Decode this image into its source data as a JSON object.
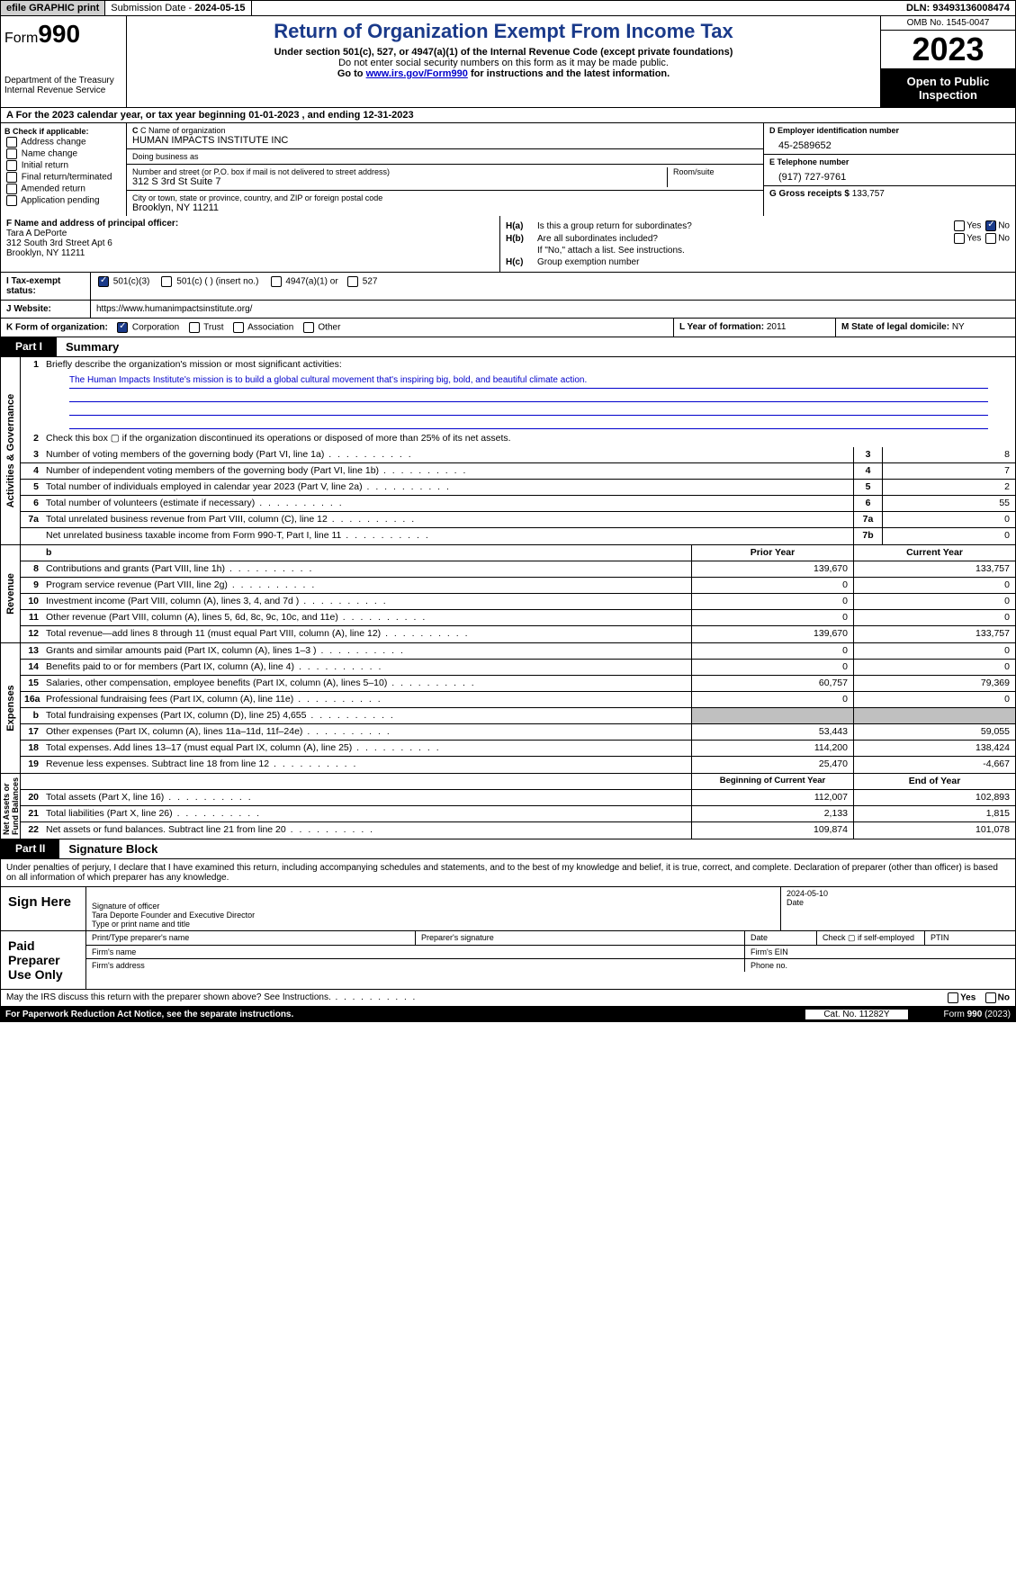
{
  "topbar": {
    "efile": "efile GRAPHIC print",
    "subdate_label": "Submission Date - ",
    "subdate": "2024-05-15",
    "dln_label": "DLN: ",
    "dln": "93493136008474"
  },
  "header": {
    "form_label": "Form",
    "form_no": "990",
    "dept": "Department of the Treasury\nInternal Revenue Service",
    "title": "Return of Organization Exempt From Income Tax",
    "sub": "Under section 501(c), 527, or 4947(a)(1) of the Internal Revenue Code (except private foundations)",
    "note1": "Do not enter social security numbers on this form as it may be made public.",
    "note2_pre": "Go to ",
    "note2_link": "www.irs.gov/Form990",
    "note2_post": " for instructions and the latest information.",
    "omb": "OMB No. 1545-0047",
    "year": "2023",
    "open": "Open to Public Inspection"
  },
  "line_a": "A For the 2023 calendar year, or tax year beginning 01-01-2023   , and ending 12-31-2023",
  "box_b": {
    "hdr": "B Check if applicable:",
    "items": [
      "Address change",
      "Name change",
      "Initial return",
      "Final return/terminated",
      "Amended return",
      "Application pending"
    ]
  },
  "box_c": {
    "name_lbl": "C Name of organization",
    "name": "HUMAN IMPACTS INSTITUTE INC",
    "dba_lbl": "Doing business as",
    "dba": "",
    "addr_lbl": "Number and street (or P.O. box if mail is not delivered to street address)",
    "addr": "312 S 3rd St Suite 7",
    "room_lbl": "Room/suite",
    "city_lbl": "City or town, state or province, country, and ZIP or foreign postal code",
    "city": "Brooklyn, NY  11211"
  },
  "box_d": {
    "lbl": "D Employer identification number",
    "val": "45-2589652"
  },
  "box_e": {
    "lbl": "E Telephone number",
    "val": "(917) 727-9761"
  },
  "box_g": {
    "lbl": "G Gross receipts $ ",
    "val": "133,757"
  },
  "box_f": {
    "lbl": "F  Name and address of principal officer:",
    "line1": "Tara A DePorte",
    "line2": "312 South 3rd Street Apt 6",
    "line3": "Brooklyn, NY  11211"
  },
  "box_h": {
    "a_lbl": "H(a)",
    "a_txt": "Is this a group return for subordinates?",
    "b_lbl": "H(b)",
    "b_txt": "Are all subordinates included?",
    "b_note": "If \"No,\" attach a list. See instructions.",
    "c_lbl": "H(c)",
    "c_txt": "Group exemption number",
    "yes": "Yes",
    "no": "No"
  },
  "row_i": {
    "lbl": "I    Tax-exempt status:",
    "opt1": "501(c)(3)",
    "opt2": "501(c) (  ) (insert no.)",
    "opt3": "4947(a)(1) or",
    "opt4": "527"
  },
  "row_j": {
    "lbl": "J    Website:",
    "val": "https://www.humanimpactsinstitute.org/"
  },
  "row_k": {
    "lbl": "K Form of organization:",
    "opts": [
      "Corporation",
      "Trust",
      "Association",
      "Other"
    ]
  },
  "row_l": {
    "lbl": "L Year of formation: ",
    "val": "2011"
  },
  "row_m": {
    "lbl": "M State of legal domicile: ",
    "val": "NY"
  },
  "part1": {
    "num": "Part I",
    "title": "Summary"
  },
  "mission": {
    "ln": "1",
    "lbl": "Briefly describe the organization's mission or most significant activities:",
    "text": "The Human Impacts Institute's mission is to build a global cultural movement that's inspiring big, bold, and beautiful climate action."
  },
  "gov_lines": [
    {
      "n": "2",
      "txt": "Check this box ▢ if the organization discontinued its operations or disposed of more than 25% of its net assets."
    },
    {
      "n": "3",
      "txt": "Number of voting members of the governing body (Part VI, line 1a)",
      "box": "3",
      "val": "8"
    },
    {
      "n": "4",
      "txt": "Number of independent voting members of the governing body (Part VI, line 1b)",
      "box": "4",
      "val": "7"
    },
    {
      "n": "5",
      "txt": "Total number of individuals employed in calendar year 2023 (Part V, line 2a)",
      "box": "5",
      "val": "2"
    },
    {
      "n": "6",
      "txt": "Total number of volunteers (estimate if necessary)",
      "box": "6",
      "val": "55"
    },
    {
      "n": "7a",
      "txt": "Total unrelated business revenue from Part VIII, column (C), line 12",
      "box": "7a",
      "val": "0"
    },
    {
      "n": "",
      "txt": "Net unrelated business taxable income from Form 990-T, Part I, line 11",
      "box": "7b",
      "val": "0"
    }
  ],
  "rev_hdr": {
    "prior": "Prior Year",
    "curr": "Current Year"
  },
  "rev_lines": [
    {
      "n": "8",
      "txt": "Contributions and grants (Part VIII, line 1h)",
      "p": "139,670",
      "c": "133,757"
    },
    {
      "n": "9",
      "txt": "Program service revenue (Part VIII, line 2g)",
      "p": "0",
      "c": "0"
    },
    {
      "n": "10",
      "txt": "Investment income (Part VIII, column (A), lines 3, 4, and 7d )",
      "p": "0",
      "c": "0"
    },
    {
      "n": "11",
      "txt": "Other revenue (Part VIII, column (A), lines 5, 6d, 8c, 9c, 10c, and 11e)",
      "p": "0",
      "c": "0"
    },
    {
      "n": "12",
      "txt": "Total revenue—add lines 8 through 11 (must equal Part VIII, column (A), line 12)",
      "p": "139,670",
      "c": "133,757"
    }
  ],
  "exp_lines": [
    {
      "n": "13",
      "txt": "Grants and similar amounts paid (Part IX, column (A), lines 1–3 )",
      "p": "0",
      "c": "0"
    },
    {
      "n": "14",
      "txt": "Benefits paid to or for members (Part IX, column (A), line 4)",
      "p": "0",
      "c": "0"
    },
    {
      "n": "15",
      "txt": "Salaries, other compensation, employee benefits (Part IX, column (A), lines 5–10)",
      "p": "60,757",
      "c": "79,369"
    },
    {
      "n": "16a",
      "txt": "Professional fundraising fees (Part IX, column (A), line 11e)",
      "p": "0",
      "c": "0"
    },
    {
      "n": "b",
      "txt": "Total fundraising expenses (Part IX, column (D), line 25) 4,655",
      "p": "",
      "c": "",
      "grey": true
    },
    {
      "n": "17",
      "txt": "Other expenses (Part IX, column (A), lines 11a–11d, 11f–24e)",
      "p": "53,443",
      "c": "59,055"
    },
    {
      "n": "18",
      "txt": "Total expenses. Add lines 13–17 (must equal Part IX, column (A), line 25)",
      "p": "114,200",
      "c": "138,424"
    },
    {
      "n": "19",
      "txt": "Revenue less expenses. Subtract line 18 from line 12",
      "p": "25,470",
      "c": "-4,667"
    }
  ],
  "na_hdr": {
    "prior": "Beginning of Current Year",
    "curr": "End of Year"
  },
  "na_lines": [
    {
      "n": "20",
      "txt": "Total assets (Part X, line 16)",
      "p": "112,007",
      "c": "102,893"
    },
    {
      "n": "21",
      "txt": "Total liabilities (Part X, line 26)",
      "p": "2,133",
      "c": "1,815"
    },
    {
      "n": "22",
      "txt": "Net assets or fund balances. Subtract line 21 from line 20",
      "p": "109,874",
      "c": "101,078"
    }
  ],
  "side_labels": {
    "gov": "Activities & Governance",
    "rev": "Revenue",
    "exp": "Expenses",
    "na": "Net Assets or\nFund Balances"
  },
  "part2": {
    "num": "Part II",
    "title": "Signature Block"
  },
  "decl": "Under penalties of perjury, I declare that I have examined this return, including accompanying schedules and statements, and to the best of my knowledge and belief, it is true, correct, and complete. Declaration of preparer (other than officer) is based on all information of which preparer has any knowledge.",
  "sign": {
    "here": "Sign Here",
    "sig_lbl": "Signature of officer",
    "date": "2024-05-10",
    "name": "Tara Deporte  Founder and Executive Director",
    "type_lbl": "Type or print name and title",
    "date_lbl": "Date"
  },
  "paid": {
    "lbl": "Paid Preparer Use Only",
    "c1": "Print/Type preparer's name",
    "c2": "Preparer's signature",
    "c3": "Date",
    "c4": "Check ▢ if self-employed",
    "c5": "PTIN",
    "firm_name": "Firm's name",
    "firm_ein": "Firm's EIN",
    "firm_addr": "Firm's address",
    "phone": "Phone no."
  },
  "discuss": {
    "txt": "May the IRS discuss this return with the preparer shown above? See Instructions.",
    "yes": "Yes",
    "no": "No"
  },
  "footer": {
    "pra": "For Paperwork Reduction Act Notice, see the separate instructions.",
    "cat": "Cat. No. 11282Y",
    "form": "Form 990 (2023)"
  }
}
